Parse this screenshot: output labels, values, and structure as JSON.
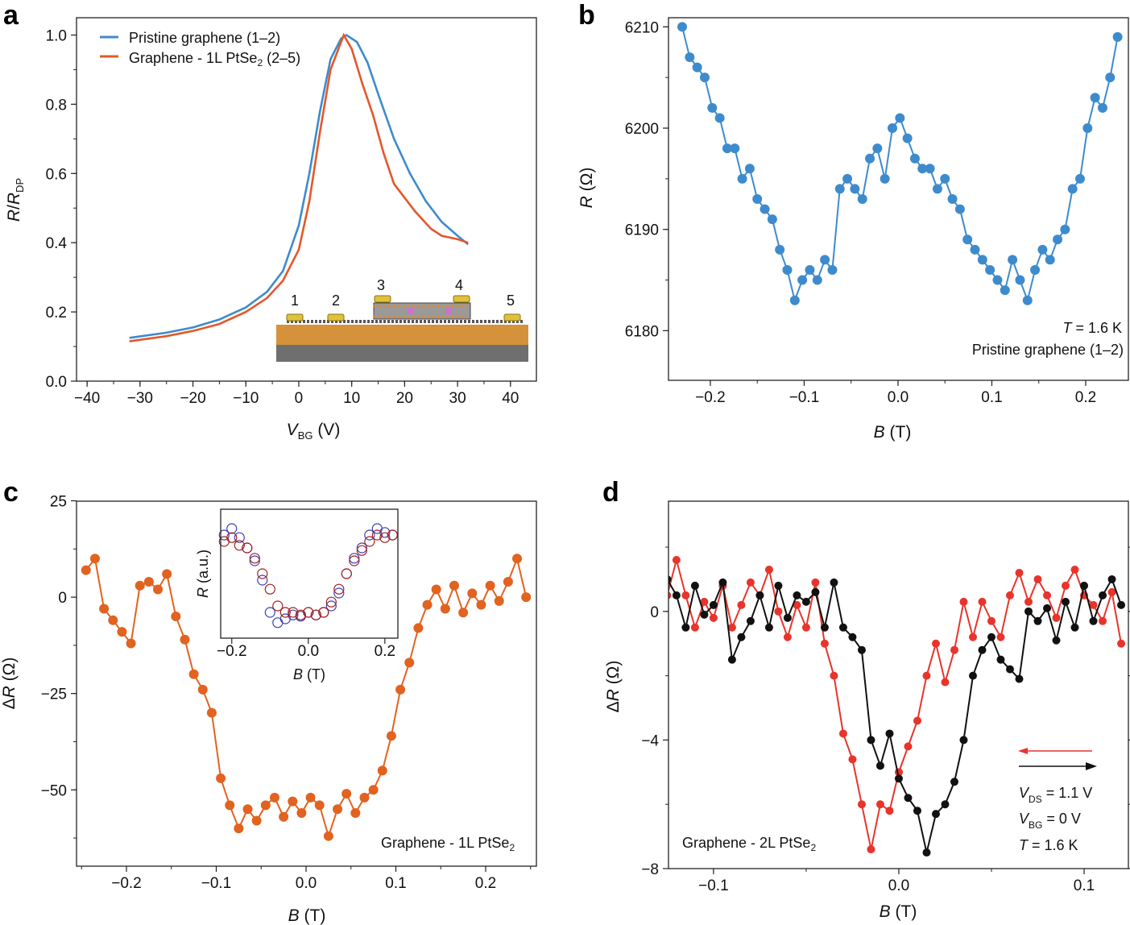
{
  "panels": [
    "a",
    "b",
    "c",
    "d"
  ],
  "chart_data": [
    {
      "panel": "a",
      "type": "line",
      "xlabel_parts": [
        "V",
        "BG",
        " (V)"
      ],
      "ylabel_parts": [
        "R",
        "/",
        "R",
        "DP"
      ],
      "xlim": [
        -42,
        44.9
      ],
      "ylim": [
        0,
        1.05
      ],
      "xticks": [
        -40,
        -30,
        -20,
        -10,
        0,
        10,
        20,
        30,
        40
      ],
      "xtick_labels": [
        "−40",
        "−30",
        "−20",
        "−10",
        "0",
        "10",
        "20",
        "30",
        "40"
      ],
      "yticks": [
        0,
        0.2,
        0.4,
        0.6,
        0.8,
        1.0
      ],
      "ytick_labels": [
        "0.0",
        "0.2",
        "0.4",
        "0.6",
        "0.8",
        "1.0"
      ],
      "legend_position": "top-left",
      "series": [
        {
          "name": "Pristine graphene (1–2)",
          "color": "#3d8bcd",
          "x": [
            -32,
            -25,
            -20,
            -15,
            -10,
            -6,
            -3,
            0,
            2,
            4,
            6,
            8,
            9,
            11,
            13,
            15,
            18,
            21,
            24,
            27,
            30,
            32
          ],
          "y": [
            0.125,
            0.14,
            0.155,
            0.178,
            0.213,
            0.258,
            0.318,
            0.45,
            0.6,
            0.78,
            0.93,
            0.99,
            1.0,
            0.98,
            0.92,
            0.83,
            0.7,
            0.6,
            0.52,
            0.46,
            0.42,
            0.395
          ]
        },
        {
          "name_parts": [
            "Graphene - 1L PtSe",
            "2",
            " (2–5)"
          ],
          "color": "#e4582a",
          "x": [
            -32,
            -25,
            -20,
            -15,
            -10,
            -6,
            -3,
            0,
            2,
            4,
            6,
            8.5,
            10,
            12,
            14,
            16,
            18,
            20,
            22,
            25,
            27,
            30,
            32
          ],
          "y": [
            0.115,
            0.13,
            0.145,
            0.165,
            0.2,
            0.24,
            0.29,
            0.38,
            0.52,
            0.72,
            0.9,
            1.0,
            0.96,
            0.86,
            0.77,
            0.66,
            0.57,
            0.53,
            0.49,
            0.44,
            0.42,
            0.41,
            0.4
          ]
        }
      ],
      "inset_labels": [
        "1",
        "2",
        "3",
        "4",
        "5"
      ]
    },
    {
      "panel": "b",
      "type": "line",
      "xlabel_parts": [
        "B",
        " (T)"
      ],
      "ylabel_parts": [
        "R",
        " (Ω)"
      ],
      "xlim": [
        -0.2446,
        0.2455
      ],
      "ylim": [
        6175.1,
        6210.9
      ],
      "xticks": [
        -0.2,
        -0.1,
        0,
        0.1,
        0.2
      ],
      "xtick_labels": [
        "−0.2",
        "−0.1",
        "0.0",
        "0.1",
        "0.2"
      ],
      "yticks": [
        6180,
        6190,
        6200,
        6210
      ],
      "ytick_labels": [
        "6180",
        "6190",
        "6200",
        "6210"
      ],
      "annotations": [
        "T",
        " = 1.6 K",
        "Pristine graphene (1–2)"
      ],
      "series": [
        {
          "color": "#3d8bcd",
          "x": [
            -0.23,
            -0.222,
            -0.214,
            -0.206,
            -0.198,
            -0.19,
            -0.182,
            -0.174,
            -0.166,
            -0.158,
            -0.15,
            -0.142,
            -0.134,
            -0.126,
            -0.118,
            -0.11,
            -0.102,
            -0.094,
            -0.086,
            -0.078,
            -0.07,
            -0.062,
            -0.054,
            -0.046,
            -0.038,
            -0.03,
            -0.022,
            -0.014,
            -0.006,
            0.002,
            0.01,
            0.018,
            0.026,
            0.034,
            0.042,
            0.05,
            0.058,
            0.066,
            0.074,
            0.082,
            0.09,
            0.098,
            0.106,
            0.114,
            0.122,
            0.13,
            0.138,
            0.146,
            0.154,
            0.162,
            0.17,
            0.178,
            0.186,
            0.194,
            0.202,
            0.21,
            0.218,
            0.226,
            0.234
          ],
          "y": [
            6210,
            6207,
            6206,
            6205,
            6202,
            6201,
            6198,
            6198,
            6195,
            6196,
            6193,
            6192,
            6191,
            6188,
            6186,
            6183,
            6185,
            6186,
            6185,
            6187,
            6186,
            6194,
            6195,
            6194,
            6193,
            6197,
            6198,
            6195,
            6200,
            6201,
            6199,
            6197,
            6196,
            6196,
            6194,
            6195,
            6193,
            6192,
            6189,
            6188,
            6187,
            6186,
            6185,
            6184,
            6187,
            6185,
            6183,
            6186,
            6188,
            6187,
            6189,
            6190,
            6194,
            6195,
            6200,
            6203,
            6202,
            6205,
            6209
          ]
        }
      ]
    },
    {
      "panel": "c",
      "type": "line",
      "xlabel_parts": [
        "B",
        " (T)"
      ],
      "ylabel_parts": [
        "Δ",
        "R",
        " (Ω)"
      ],
      "xlim": [
        -0.2556,
        0.2565
      ],
      "ylim": [
        -69.8,
        24.9
      ],
      "xticks": [
        -0.2,
        -0.1,
        0,
        0.1,
        0.2
      ],
      "xtick_labels": [
        "−0.2",
        "−0.1",
        "0.0",
        "0.1",
        "0.2"
      ],
      "yticks": [
        -50,
        -25,
        0,
        25
      ],
      "ytick_labels": [
        "−50",
        "−25",
        "0",
        "25"
      ],
      "annotations": [
        "Graphene - 1L PtSe",
        "2"
      ],
      "series": [
        {
          "color": "#e2621f",
          "x": [
            -0.245,
            -0.235,
            -0.225,
            -0.215,
            -0.205,
            -0.195,
            -0.185,
            -0.175,
            -0.165,
            -0.155,
            -0.145,
            -0.135,
            -0.125,
            -0.115,
            -0.105,
            -0.095,
            -0.085,
            -0.075,
            -0.065,
            -0.055,
            -0.045,
            -0.035,
            -0.025,
            -0.015,
            -0.005,
            0.005,
            0.015,
            0.025,
            0.035,
            0.045,
            0.055,
            0.065,
            0.075,
            0.085,
            0.095,
            0.105,
            0.115,
            0.125,
            0.135,
            0.145,
            0.155,
            0.165,
            0.175,
            0.185,
            0.195,
            0.205,
            0.215,
            0.225,
            0.235,
            0.245
          ],
          "y": [
            7,
            10,
            -3,
            -6,
            -9,
            -12,
            3,
            4,
            2,
            6,
            -5,
            -11,
            -20,
            -24,
            -30,
            -47,
            -54,
            -60,
            -55,
            -58,
            -54,
            -52,
            -57,
            -53,
            -56,
            -52,
            -54,
            -62,
            -55,
            -51,
            -56,
            -52,
            -50,
            -45,
            -36,
            -24,
            -17,
            -8,
            -2,
            2,
            -3,
            3,
            -4,
            1,
            -2,
            3,
            -1,
            4,
            10,
            0
          ]
        }
      ],
      "inset": {
        "xlabel_parts": [
          "B",
          " (T)"
        ],
        "ylabel_parts": [
          "R",
          " (a.u.)"
        ],
        "xlim": [
          -0.229,
          0.234
        ],
        "ylim": [
          0,
          1
        ],
        "xticks": [
          -0.2,
          0,
          0.2
        ],
        "xtick_labels": [
          "−0.2",
          "0.0",
          "0.2"
        ],
        "series": [
          {
            "color": "#3b3fb5",
            "x": [
              -0.22,
              -0.2,
              -0.18,
              -0.16,
              -0.14,
              -0.12,
              -0.1,
              -0.08,
              -0.06,
              -0.04,
              -0.02,
              0,
              0.02,
              0.04,
              0.06,
              0.08,
              0.1,
              0.12,
              0.14,
              0.16,
              0.18,
              0.2,
              0.22
            ],
            "y": [
              0.8,
              0.85,
              0.78,
              0.7,
              0.6,
              0.45,
              0.2,
              0.12,
              0.15,
              0.18,
              0.17,
              0.2,
              0.18,
              0.2,
              0.25,
              0.35,
              0.5,
              0.62,
              0.7,
              0.8,
              0.85,
              0.82,
              0.8
            ]
          },
          {
            "color": "#a3201f",
            "x": [
              -0.22,
              -0.2,
              -0.18,
              -0.16,
              -0.14,
              -0.12,
              -0.1,
              -0.08,
              -0.06,
              -0.04,
              -0.02,
              0,
              0.02,
              0.04,
              0.06,
              0.08,
              0.1,
              0.12,
              0.14,
              0.16,
              0.18,
              0.2,
              0.22
            ],
            "y": [
              0.75,
              0.78,
              0.72,
              0.7,
              0.62,
              0.5,
              0.38,
              0.25,
              0.2,
              0.2,
              0.18,
              0.2,
              0.18,
              0.2,
              0.28,
              0.38,
              0.5,
              0.6,
              0.68,
              0.75,
              0.8,
              0.78,
              0.8
            ]
          }
        ]
      }
    },
    {
      "panel": "d",
      "type": "line",
      "xlabel_parts": [
        "B",
        " (T)"
      ],
      "ylabel_parts": [
        "Δ",
        "R",
        " (Ω)"
      ],
      "xlim": [
        -0.1243,
        0.1239
      ],
      "ylim": [
        -8,
        3.43
      ],
      "xticks": [
        -0.1,
        0,
        0.1
      ],
      "xtick_labels": [
        "−0.1",
        "0.0",
        "0.1"
      ],
      "yticks": [
        -8,
        -4,
        0
      ],
      "ytick_labels": [
        "−8",
        "−4",
        "0"
      ],
      "annotations": {
        "sample": [
          "Graphene - 2L PtSe",
          "2"
        ],
        "vds": [
          "V",
          "DS",
          " = 1.1 V"
        ],
        "vbg": [
          "V",
          "BG",
          " = 0 V"
        ],
        "temp": [
          "T",
          " = 1.6 K"
        ]
      },
      "series": [
        {
          "sweep": "decreasing B",
          "color": "#e8342b",
          "x": [
            -0.125,
            -0.12,
            -0.115,
            -0.11,
            -0.105,
            -0.1,
            -0.095,
            -0.09,
            -0.085,
            -0.08,
            -0.075,
            -0.07,
            -0.065,
            -0.06,
            -0.055,
            -0.05,
            -0.045,
            -0.04,
            -0.035,
            -0.03,
            -0.025,
            -0.02,
            -0.015,
            -0.01,
            -0.005,
            0,
            0.005,
            0.01,
            0.015,
            0.02,
            0.025,
            0.03,
            0.035,
            0.04,
            0.045,
            0.05,
            0.055,
            0.06,
            0.065,
            0.07,
            0.075,
            0.08,
            0.085,
            0.09,
            0.095,
            0.1,
            0.105,
            0.11,
            0.115,
            0.12
          ],
          "y": [
            0.5,
            1.6,
            0.5,
            -0.5,
            0.3,
            -0.2,
            0.8,
            -0.5,
            0.2,
            0.9,
            0.5,
            1.3,
            0.0,
            -0.8,
            0.2,
            -0.5,
            0.9,
            -1.0,
            -2.0,
            -3.8,
            -4.6,
            -6.0,
            -7.4,
            -6.0,
            -6.2,
            -5.0,
            -4.2,
            -3.4,
            -2.0,
            -1.0,
            -2.2,
            -1.2,
            0.3,
            -0.8,
            0.3,
            -0.3,
            -0.8,
            0.5,
            1.2,
            0.3,
            1.0,
            0.5,
            -0.2,
            0.8,
            1.3,
            0.5,
            0.2,
            -0.3,
            0.6,
            -1.0
          ]
        },
        {
          "sweep": "increasing B",
          "color": "#111111",
          "x": [
            -0.125,
            -0.12,
            -0.115,
            -0.11,
            -0.105,
            -0.1,
            -0.095,
            -0.09,
            -0.085,
            -0.08,
            -0.075,
            -0.07,
            -0.065,
            -0.06,
            -0.055,
            -0.05,
            -0.045,
            -0.04,
            -0.035,
            -0.03,
            -0.025,
            -0.02,
            -0.015,
            -0.01,
            -0.005,
            0,
            0.005,
            0.01,
            0.015,
            0.02,
            0.025,
            0.03,
            0.035,
            0.04,
            0.045,
            0.05,
            0.055,
            0.06,
            0.065,
            0.07,
            0.075,
            0.08,
            0.085,
            0.09,
            0.095,
            0.1,
            0.105,
            0.11,
            0.115,
            0.12
          ],
          "y": [
            1.0,
            0.5,
            -0.5,
            0.8,
            -0.1,
            0.2,
            0.9,
            -1.5,
            -0.8,
            -0.3,
            0.5,
            -0.5,
            0.8,
            -0.2,
            0.5,
            0.3,
            0.6,
            -0.5,
            0.9,
            -0.5,
            -0.8,
            -1.2,
            -4.0,
            -4.8,
            -3.8,
            -5.2,
            -5.8,
            -6.2,
            -7.5,
            -6.3,
            -6.0,
            -5.3,
            -4.0,
            -2.0,
            -1.2,
            -0.8,
            -1.5,
            -1.8,
            -2.1,
            0.0,
            -0.3,
            0.1,
            -0.9,
            0.3,
            -0.5,
            0.8,
            -0.3,
            0.5,
            1.0,
            0.2
          ]
        }
      ]
    }
  ]
}
